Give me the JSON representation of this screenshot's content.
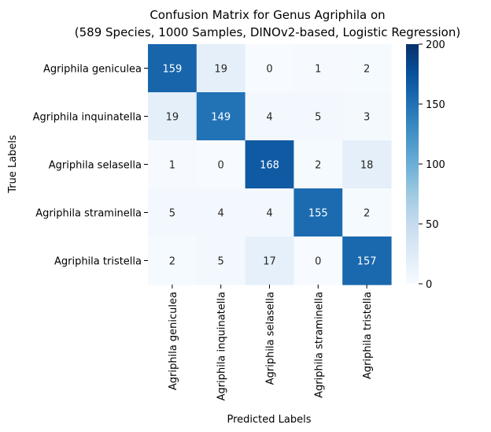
{
  "chart_data": {
    "type": "heatmap",
    "title_lines": [
      "Confusion Matrix for Genus Agriphila on",
      "(589 Species, 1000 Samples, DINOv2-based, Logistic Regression)"
    ],
    "xlabel": "Predicted Labels",
    "ylabel": "True Labels",
    "row_labels": [
      "Agriphila geniculea",
      "Agriphila inquinatella",
      "Agriphila selasella",
      "Agriphila straminella",
      "Agriphila tristella"
    ],
    "col_labels": [
      "Agriphila geniculea",
      "Agriphila inquinatella",
      "Agriphila selasella",
      "Agriphila straminella",
      "Agriphila tristella"
    ],
    "values": [
      [
        159,
        19,
        0,
        1,
        2
      ],
      [
        19,
        149,
        4,
        5,
        3
      ],
      [
        1,
        0,
        168,
        2,
        18
      ],
      [
        5,
        4,
        4,
        155,
        2
      ],
      [
        2,
        5,
        17,
        0,
        157
      ]
    ],
    "colorbar": {
      "vmin": 0,
      "vmax": 200,
      "ticks": [
        0,
        50,
        100,
        150,
        200
      ],
      "colormap": "Blues"
    },
    "grid": false
  }
}
